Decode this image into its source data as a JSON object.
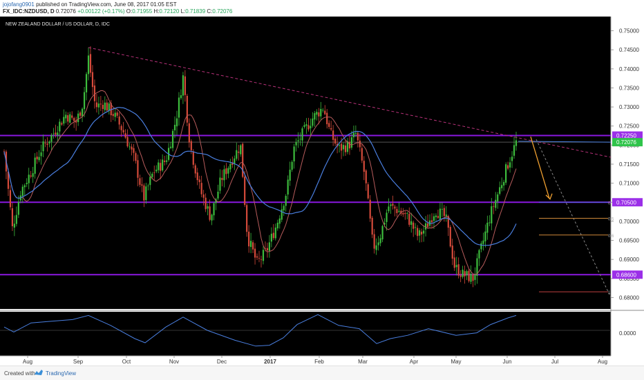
{
  "header": {
    "user": "jojofang0901",
    "published": "published on TradingView.com, June 08, 2017 01:05 EST",
    "symbol": "FX_IDC:NZDUSD, D",
    "last": "0.72076",
    "change": "+0.00122 (+0.17%)",
    "o_label": "O:",
    "o_value": "0.71955",
    "h_label": "H:",
    "h_value": "0.72120",
    "l_label": "L:",
    "l_value": "0.71839",
    "c_label": "C:",
    "c_value": "0.72076"
  },
  "pane_title": "NEW ZEALAND DOLLAR / US DOLLAR, D, IDC",
  "footer": {
    "created_with": "Created with",
    "brand": "TradingView"
  },
  "colors": {
    "background": "#000000",
    "bull": "#3dbd3d",
    "bear": "#d64b3b",
    "support": "#8a18e0",
    "trendline": "#b8327a",
    "ma_fast": "#b85c5c",
    "ma_slow": "#4a7fe0",
    "badge_purple": "#9b2fe8",
    "badge_green": "#2fc44a",
    "projection": "#f0a030"
  },
  "chart_data": {
    "type": "candlestick",
    "symbol": "FX_IDC:NZDUSD",
    "interval": "D",
    "y_ticks": [
      "0.75000",
      "0.74500",
      "0.74000",
      "0.73500",
      "0.73000",
      "0.72500",
      "0.72000",
      "0.71500",
      "0.71000",
      "0.70500",
      "0.70000",
      "0.69500",
      "0.69000",
      "0.68500",
      "0.68000"
    ],
    "ylim": [
      0.677,
      0.753
    ],
    "x_labels": [
      "Aug",
      "Sep",
      "Oct",
      "Nov",
      "Dec",
      "2017",
      "Feb",
      "Mar",
      "Apr",
      "May",
      "Jun",
      "Jul",
      "Aug"
    ],
    "price_badges": [
      {
        "label": "0.72250",
        "value": 0.7225,
        "kind": "purple"
      },
      {
        "label": "0.72076",
        "value": 0.72076,
        "kind": "green"
      },
      {
        "label": "0.70500",
        "value": 0.705,
        "kind": "purple"
      },
      {
        "label": "0.68600",
        "value": 0.686,
        "kind": "purple"
      }
    ],
    "support_levels": [
      0.7225,
      0.705,
      0.686
    ],
    "fib_labels": [
      "0",
      "0.5",
      "0.6",
      "1"
    ],
    "oscillator_label": "0.0000",
    "candle_count": 250,
    "y_axis_scale": "linear"
  }
}
